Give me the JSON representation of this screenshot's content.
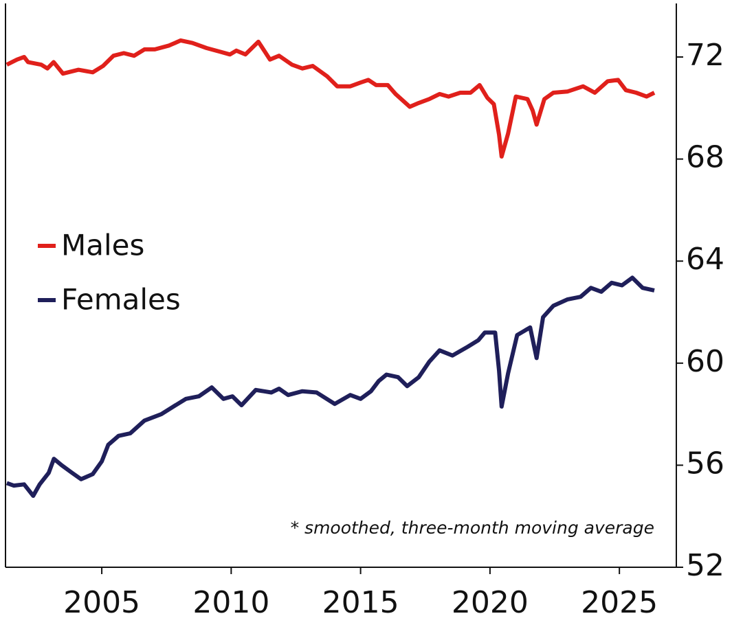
{
  "chart_data": {
    "type": "line",
    "annotation": "* smoothed, three-month moving average",
    "xlim": [
      2001.28,
      2027.2
    ],
    "xticks": [
      2005,
      2010,
      2015,
      2020,
      2025
    ],
    "ylim": [
      52,
      74.1
    ],
    "yticks": [
      52,
      56,
      60,
      64,
      68,
      72
    ],
    "y_axis_side": "right",
    "legend": "left",
    "series": [
      {
        "name": "Males",
        "color": "#e0201b",
        "x": [
          2001.33,
          2001.73,
          2002.0,
          2002.15,
          2002.66,
          2002.9,
          2003.14,
          2003.5,
          2003.7,
          2004.1,
          2004.65,
          2005.05,
          2005.45,
          2005.85,
          2006.25,
          2006.65,
          2007.05,
          2007.6,
          2008.05,
          2008.5,
          2009.05,
          2009.6,
          2009.95,
          2010.2,
          2010.55,
          2011.05,
          2011.5,
          2011.85,
          2012.35,
          2012.75,
          2013.15,
          2013.7,
          2014.1,
          2014.6,
          2015.0,
          2015.3,
          2015.6,
          2016.05,
          2016.35,
          2016.9,
          2017.25,
          2017.65,
          2018.05,
          2018.4,
          2018.85,
          2019.25,
          2019.6,
          2019.9,
          2020.15,
          2020.35,
          2020.45,
          2020.7,
          2021.0,
          2021.45,
          2021.65,
          2021.8,
          2022.1,
          2022.45,
          2023.0,
          2023.6,
          2024.05,
          2024.55,
          2024.95,
          2025.25,
          2025.65,
          2026.05,
          2026.35
        ],
        "values": [
          71.7,
          71.9,
          72.0,
          71.8,
          71.7,
          71.55,
          71.8,
          71.35,
          71.4,
          71.5,
          71.4,
          71.65,
          72.05,
          72.15,
          72.05,
          72.3,
          72.3,
          72.45,
          72.65,
          72.55,
          72.35,
          72.2,
          72.1,
          72.25,
          72.1,
          72.6,
          71.9,
          72.05,
          71.7,
          71.55,
          71.65,
          71.25,
          70.85,
          70.85,
          71.0,
          71.1,
          70.9,
          70.9,
          70.55,
          70.05,
          70.2,
          70.35,
          70.55,
          70.45,
          70.6,
          70.6,
          70.9,
          70.4,
          70.15,
          68.95,
          68.1,
          69.0,
          70.45,
          70.35,
          69.9,
          69.35,
          70.35,
          70.6,
          70.65,
          70.85,
          70.6,
          71.05,
          71.1,
          70.7,
          70.6,
          70.45,
          70.6
        ]
      },
      {
        "name": "Females",
        "color": "#1f1f5a",
        "x": [
          2001.33,
          2001.6,
          2002.0,
          2002.35,
          2002.6,
          2002.95,
          2003.15,
          2003.45,
          2003.85,
          2004.2,
          2004.65,
          2005.0,
          2005.25,
          2005.65,
          2006.1,
          2006.65,
          2007.3,
          2007.85,
          2008.25,
          2008.75,
          2009.25,
          2009.7,
          2010.05,
          2010.4,
          2010.95,
          2011.55,
          2011.85,
          2012.2,
          2012.75,
          2013.3,
          2014.0,
          2014.6,
          2015.0,
          2015.4,
          2015.7,
          2016.0,
          2016.45,
          2016.8,
          2017.25,
          2017.65,
          2018.05,
          2018.55,
          2019.15,
          2019.55,
          2019.8,
          2020.2,
          2020.35,
          2020.45,
          2020.7,
          2021.05,
          2021.55,
          2021.8,
          2022.05,
          2022.45,
          2023.0,
          2023.5,
          2023.9,
          2024.3,
          2024.7,
          2025.1,
          2025.5,
          2025.9,
          2026.35
        ],
        "values": [
          55.3,
          55.2,
          55.25,
          54.8,
          55.25,
          55.7,
          56.25,
          56.0,
          55.7,
          55.45,
          55.65,
          56.15,
          56.8,
          57.15,
          57.25,
          57.75,
          58.0,
          58.35,
          58.6,
          58.7,
          59.05,
          58.6,
          58.7,
          58.35,
          58.95,
          58.85,
          59.0,
          58.75,
          58.9,
          58.85,
          58.4,
          58.75,
          58.6,
          58.9,
          59.3,
          59.55,
          59.45,
          59.1,
          59.45,
          60.05,
          60.5,
          60.3,
          60.65,
          60.9,
          61.2,
          61.2,
          59.7,
          58.3,
          59.6,
          61.1,
          61.4,
          60.2,
          61.8,
          62.25,
          62.5,
          62.6,
          62.95,
          62.8,
          63.15,
          63.05,
          63.35,
          62.95,
          62.85
        ]
      }
    ]
  }
}
